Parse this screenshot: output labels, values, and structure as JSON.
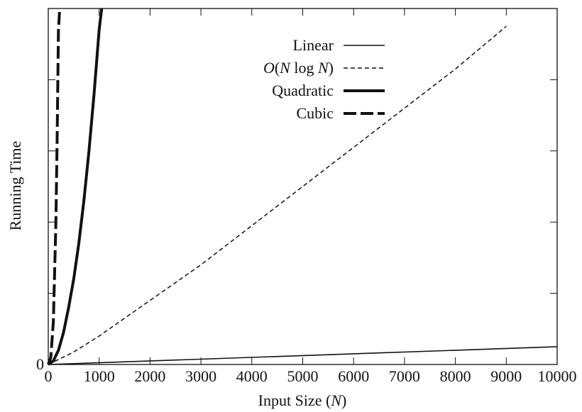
{
  "chart_data": {
    "type": "line",
    "title": "",
    "xlabel": {
      "prefix": "Input Size (",
      "var": "N",
      "suffix": ")"
    },
    "ylabel": "Running Time",
    "xlim": [
      0,
      10000
    ],
    "ylim": [
      0,
      1
    ],
    "x_ticks": [
      0,
      1000,
      2000,
      3000,
      4000,
      5000,
      6000,
      7000,
      8000,
      9000,
      10000
    ],
    "x_tick_labels": [
      "0",
      "1000",
      "2000",
      "3000",
      "4000",
      "5000",
      "6000",
      "7000",
      "8000",
      "9000",
      "10000"
    ],
    "y_ticks": [
      0,
      0.2,
      0.4,
      0.6,
      0.8,
      1.0
    ],
    "y_tick_labels": [
      "0",
      "",
      "",
      "",
      "",
      ""
    ],
    "grid": false,
    "legend_position": "top-center",
    "series": [
      {
        "name": "Linear",
        "legend_parts": [
          {
            "text": "Linear",
            "italic": false
          }
        ],
        "style": "solid-thin",
        "points": [
          [
            0,
            0
          ],
          [
            10000,
            0.05
          ]
        ]
      },
      {
        "name": "O(N log N)",
        "legend_parts": [
          {
            "text": "O",
            "italic": true
          },
          {
            "text": "(",
            "italic": false
          },
          {
            "text": "N",
            "italic": true
          },
          {
            "text": " log ",
            "italic": false
          },
          {
            "text": "N",
            "italic": true
          },
          {
            "text": ")",
            "italic": false
          }
        ],
        "style": "dashed-thin",
        "points": [
          [
            0,
            0
          ],
          [
            500,
            0.035
          ],
          [
            1000,
            0.08
          ],
          [
            2000,
            0.18
          ],
          [
            3000,
            0.28
          ],
          [
            4000,
            0.39
          ],
          [
            5000,
            0.5
          ],
          [
            6000,
            0.61
          ],
          [
            7000,
            0.72
          ],
          [
            8000,
            0.83
          ],
          [
            9000,
            0.95
          ]
        ]
      },
      {
        "name": "Quadratic",
        "legend_parts": [
          {
            "text": "Quadratic",
            "italic": false
          }
        ],
        "style": "solid-thick",
        "points": [
          [
            0,
            0
          ],
          [
            100,
            0.01
          ],
          [
            200,
            0.04
          ],
          [
            300,
            0.09
          ],
          [
            400,
            0.16
          ],
          [
            500,
            0.24
          ],
          [
            600,
            0.34
          ],
          [
            700,
            0.46
          ],
          [
            800,
            0.6
          ],
          [
            900,
            0.76
          ],
          [
            1000,
            0.94
          ],
          [
            1050,
            1.0
          ]
        ]
      },
      {
        "name": "Cubic",
        "legend_parts": [
          {
            "text": "Cubic",
            "italic": false
          }
        ],
        "style": "long-dashed-thick",
        "points": [
          [
            0,
            0
          ],
          [
            50,
            0.02
          ],
          [
            100,
            0.12
          ],
          [
            150,
            0.4
          ],
          [
            175,
            0.64
          ],
          [
            200,
            0.94
          ],
          [
            225,
            1.0
          ]
        ]
      }
    ]
  }
}
